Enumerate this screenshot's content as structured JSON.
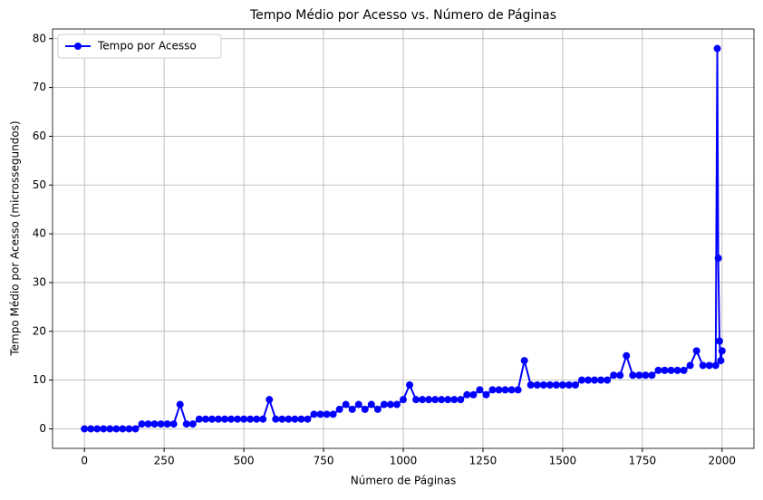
{
  "chart_data": {
    "type": "line",
    "title": "Tempo Médio por Acesso vs. Número de Páginas",
    "xlabel": "Número de Páginas",
    "ylabel": "Tempo Médio por Acesso (microssegundos)",
    "x": [
      0,
      20,
      40,
      60,
      80,
      100,
      120,
      140,
      160,
      180,
      200,
      220,
      240,
      260,
      280,
      300,
      320,
      340,
      360,
      380,
      400,
      420,
      440,
      460,
      480,
      500,
      520,
      540,
      560,
      580,
      600,
      620,
      640,
      660,
      680,
      700,
      720,
      740,
      760,
      780,
      800,
      820,
      840,
      860,
      880,
      900,
      920,
      940,
      960,
      980,
      1000,
      1020,
      1040,
      1060,
      1080,
      1100,
      1120,
      1140,
      1160,
      1180,
      1200,
      1220,
      1240,
      1260,
      1280,
      1300,
      1320,
      1340,
      1360,
      1380,
      1400,
      1420,
      1440,
      1460,
      1480,
      1500,
      1520,
      1540,
      1560,
      1580,
      1600,
      1620,
      1640,
      1660,
      1680,
      1700,
      1720,
      1740,
      1760,
      1780,
      1800,
      1820,
      1840,
      1860,
      1880,
      1900,
      1920,
      1940,
      1960,
      1980,
      1985,
      1988,
      1992,
      1996,
      2000
    ],
    "series": [
      {
        "name": "Tempo por Acesso",
        "color": "#0000ff",
        "values": [
          0,
          0,
          0,
          0,
          0,
          0,
          0,
          0,
          0,
          1,
          1,
          1,
          1,
          1,
          1,
          5,
          1,
          1,
          2,
          2,
          2,
          2,
          2,
          2,
          2,
          2,
          2,
          2,
          2,
          6,
          2,
          2,
          2,
          2,
          2,
          2,
          3,
          3,
          3,
          3,
          4,
          5,
          4,
          5,
          4,
          5,
          4,
          5,
          5,
          5,
          6,
          9,
          6,
          6,
          6,
          6,
          6,
          6,
          6,
          6,
          7,
          7,
          8,
          7,
          8,
          8,
          8,
          8,
          8,
          14,
          9,
          9,
          9,
          9,
          9,
          9,
          9,
          9,
          10,
          10,
          10,
          10,
          10,
          11,
          11,
          15,
          11,
          11,
          11,
          11,
          12,
          12,
          12,
          12,
          12,
          13,
          16,
          13,
          13,
          13,
          78,
          35,
          18,
          14,
          16
        ]
      }
    ],
    "xlim": [
      -100,
      2100
    ],
    "xticks": [
      0,
      250,
      500,
      750,
      1000,
      1250,
      1500,
      1750,
      2000
    ],
    "ylim": [
      -4,
      82
    ],
    "yticks": [
      0,
      10,
      20,
      30,
      40,
      50,
      60,
      70,
      80
    ],
    "grid": true,
    "legend": "upper-left"
  }
}
